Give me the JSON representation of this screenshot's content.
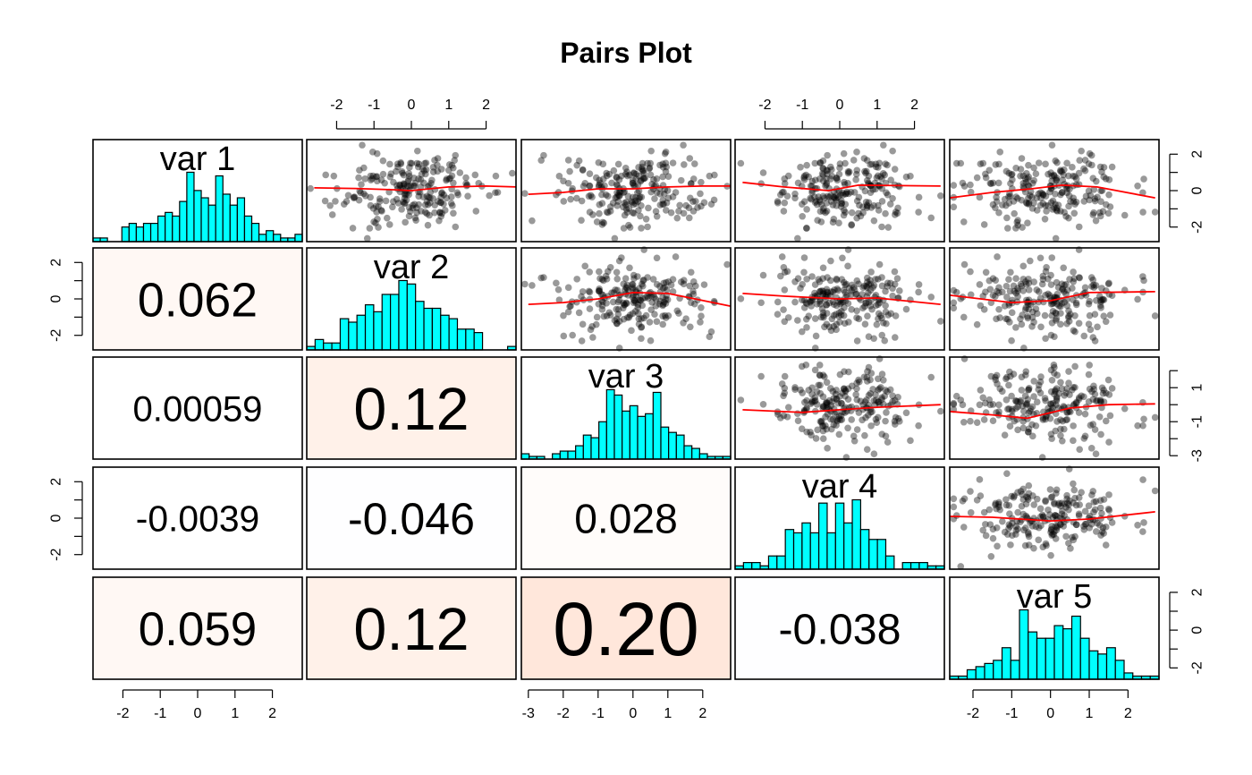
{
  "title": "Pairs Plot",
  "chart_data": {
    "type": "scatter",
    "title": "Pairs Plot",
    "variables": [
      "var 1",
      "var 2",
      "var 3",
      "var 4",
      "var 5"
    ],
    "histogram_color": "#00FFFF",
    "smooth_color": "#FF0000",
    "point_color": "#000000",
    "ranges": [
      [
        -2.8,
        2.8
      ],
      [
        -2.8,
        2.8
      ],
      [
        -3.2,
        2.8
      ],
      [
        -2.8,
        2.8
      ],
      [
        -2.6,
        2.8
      ]
    ],
    "axis_ticks": {
      "var 1": [
        -2,
        -1,
        0,
        1,
        2
      ],
      "var 2": [
        -2,
        0,
        2
      ],
      "var 3": [
        -3,
        -1,
        1
      ],
      "var 4": [
        -2,
        0,
        2
      ],
      "var 5": [
        -2,
        0,
        2
      ],
      "var 2 top": [
        -2,
        -1,
        0,
        1,
        2
      ],
      "var 3 bottom": [
        -3,
        -2,
        -1,
        0,
        1,
        2
      ],
      "var 4 top": [
        -2,
        -1,
        0,
        1,
        2
      ],
      "var 5 bottom": [
        -2,
        -1,
        0,
        1,
        2
      ]
    },
    "histograms": [
      {
        "variable": "var 1",
        "counts": [
          1,
          1,
          0,
          0,
          4,
          5,
          4,
          5,
          5,
          7,
          8,
          7,
          11,
          19,
          14,
          12,
          10,
          18,
          13,
          10,
          12,
          7,
          5,
          2,
          3,
          2,
          1,
          1,
          2
        ]
      },
      {
        "variable": "var 2",
        "counts": [
          1,
          3,
          2,
          2,
          9,
          8,
          10,
          13,
          11,
          16,
          16,
          20,
          19,
          14,
          12,
          12,
          10,
          9,
          6,
          6,
          5,
          0,
          0,
          0,
          1
        ]
      },
      {
        "variable": "var 3",
        "counts": [
          2,
          1,
          1,
          0,
          2,
          3,
          3,
          5,
          9,
          8,
          14,
          26,
          24,
          18,
          20,
          16,
          17,
          25,
          12,
          10,
          9,
          5,
          4,
          2,
          1,
          1,
          1
        ]
      },
      {
        "variable": "var 4",
        "counts": [
          1,
          2,
          2,
          1,
          4,
          4,
          12,
          11,
          14,
          11,
          20,
          11,
          20,
          14,
          21,
          12,
          9,
          9,
          4,
          0,
          2,
          2,
          2,
          1,
          1
        ]
      },
      {
        "variable": "var 5",
        "counts": [
          1,
          1,
          3,
          4,
          5,
          6,
          10,
          6,
          22,
          15,
          13,
          13,
          17,
          16,
          20,
          13,
          9,
          8,
          10,
          6,
          2,
          1,
          1,
          1
        ]
      }
    ],
    "correlations": [
      {
        "row": 2,
        "col": 1,
        "value": "0.062",
        "r": 0.062
      },
      {
        "row": 3,
        "col": 1,
        "value": "0.00059",
        "r": 0.00059
      },
      {
        "row": 3,
        "col": 2,
        "value": "0.12",
        "r": 0.12
      },
      {
        "row": 4,
        "col": 1,
        "value": "-0.0039",
        "r": -0.0039
      },
      {
        "row": 4,
        "col": 2,
        "value": "-0.046",
        "r": -0.046
      },
      {
        "row": 4,
        "col": 3,
        "value": "0.028",
        "r": 0.028
      },
      {
        "row": 5,
        "col": 1,
        "value": "0.059",
        "r": 0.059
      },
      {
        "row": 5,
        "col": 2,
        "value": "0.12",
        "r": 0.12
      },
      {
        "row": 5,
        "col": 3,
        "value": "0.20",
        "r": 0.2
      },
      {
        "row": 5,
        "col": 4,
        "value": "-0.038",
        "r": -0.038
      }
    ],
    "scatter_panels": [
      {
        "row": 1,
        "col": 2,
        "smooth": [
          [
            -2.6,
            0.15
          ],
          [
            -1.5,
            0.12
          ],
          [
            -0.5,
            0.05
          ],
          [
            0.0,
            0.0
          ],
          [
            1.0,
            0.2
          ],
          [
            2.0,
            0.25
          ],
          [
            2.8,
            0.2
          ]
        ]
      },
      {
        "row": 1,
        "col": 3,
        "smooth": [
          [
            -3.0,
            -0.2
          ],
          [
            -2.0,
            -0.1
          ],
          [
            -1.0,
            0.1
          ],
          [
            0.0,
            0.1
          ],
          [
            1.0,
            0.2
          ],
          [
            2.0,
            0.25
          ],
          [
            2.8,
            0.25
          ]
        ]
      },
      {
        "row": 1,
        "col": 4,
        "smooth": [
          [
            -2.6,
            0.45
          ],
          [
            -1.5,
            0.2
          ],
          [
            -0.3,
            0.0
          ],
          [
            0.5,
            0.3
          ],
          [
            2.7,
            0.25
          ]
        ]
      },
      {
        "row": 1,
        "col": 5,
        "smooth": [
          [
            -2.6,
            -0.4
          ],
          [
            -1.5,
            -0.1
          ],
          [
            -0.5,
            0.1
          ],
          [
            0.3,
            0.3
          ],
          [
            1.2,
            0.2
          ],
          [
            2.7,
            -0.4
          ]
        ]
      },
      {
        "row": 2,
        "col": 3,
        "smooth": [
          [
            -3.0,
            -0.3
          ],
          [
            -2.0,
            -0.2
          ],
          [
            -1.0,
            0.0
          ],
          [
            0.0,
            0.35
          ],
          [
            1.0,
            0.3
          ],
          [
            2.8,
            -0.4
          ]
        ]
      },
      {
        "row": 2,
        "col": 4,
        "smooth": [
          [
            -2.6,
            0.3
          ],
          [
            -1.5,
            0.15
          ],
          [
            0.0,
            0.0
          ],
          [
            1.0,
            0.05
          ],
          [
            2.7,
            -0.3
          ]
        ]
      },
      {
        "row": 2,
        "col": 5,
        "smooth": [
          [
            -2.6,
            0.2
          ],
          [
            -1.0,
            -0.2
          ],
          [
            0.0,
            -0.1
          ],
          [
            1.0,
            0.35
          ],
          [
            2.7,
            0.4
          ]
        ]
      },
      {
        "row": 3,
        "col": 4,
        "smooth": [
          [
            -2.6,
            -0.3
          ],
          [
            -1.0,
            -0.45
          ],
          [
            0.0,
            -0.3
          ],
          [
            1.0,
            -0.15
          ],
          [
            2.7,
            0.0
          ]
        ]
      },
      {
        "row": 3,
        "col": 5,
        "smooth": [
          [
            -2.6,
            -0.4
          ],
          [
            -1.5,
            -0.6
          ],
          [
            -0.6,
            -0.8
          ],
          [
            0.5,
            -0.2
          ],
          [
            1.5,
            0.0
          ],
          [
            2.7,
            0.05
          ]
        ]
      },
      {
        "row": 4,
        "col": 5,
        "smooth": [
          [
            -2.6,
            0.1
          ],
          [
            -1.5,
            0.05
          ],
          [
            0.0,
            -0.15
          ],
          [
            1.0,
            -0.05
          ],
          [
            2.7,
            0.35
          ]
        ]
      }
    ],
    "sample_size": 220
  }
}
